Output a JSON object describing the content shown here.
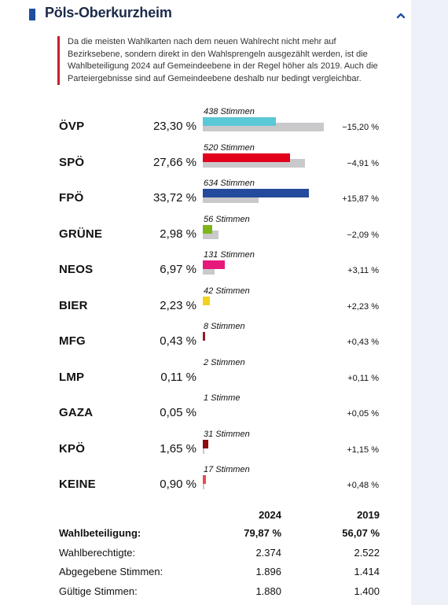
{
  "header": {
    "title": "Pöls-Oberkurzheim",
    "collapse_icon": "chevron-up-icon"
  },
  "note": "Da die meisten Wahlkarten nach dem neuen Wahlrecht nicht mehr auf Bezirksebene, sondern direkt in den Wahlsprengeln ausgezählt werden, ist die Wahlbeteiligung 2024 auf Gemeindeebene in der Regel höher als 2019. Auch die Parteiergebnisse sind auf Gemeindeebene deshalb nur bedingt vergleichbar.",
  "parties": [
    {
      "name": "ÖVP",
      "pct": "23,30 %",
      "votes": "438 Stimmen",
      "diff": "−15,20 %",
      "share_now": 23.3,
      "share_prev": 38.5,
      "color": "#5bc8d6"
    },
    {
      "name": "SPÖ",
      "pct": "27,66 %",
      "votes": "520 Stimmen",
      "diff": "−4,91 %",
      "share_now": 27.66,
      "share_prev": 32.57,
      "color": "#e3001b"
    },
    {
      "name": "FPÖ",
      "pct": "33,72 %",
      "votes": "634 Stimmen",
      "diff": "+15,87 %",
      "share_now": 33.72,
      "share_prev": 17.85,
      "color": "#234a9c"
    },
    {
      "name": "GRÜNE",
      "pct": "2,98 %",
      "votes": "56 Stimmen",
      "diff": "−2,09 %",
      "share_now": 2.98,
      "share_prev": 5.07,
      "color": "#7fb51c"
    },
    {
      "name": "NEOS",
      "pct": "6,97 %",
      "votes": "131 Stimmen",
      "diff": "+3,11 %",
      "share_now": 6.97,
      "share_prev": 3.86,
      "color": "#e6197b"
    },
    {
      "name": "BIER",
      "pct": "2,23 %",
      "votes": "42 Stimmen",
      "diff": "+2,23 %",
      "share_now": 2.23,
      "share_prev": 0,
      "color": "#f2d21e"
    },
    {
      "name": "MFG",
      "pct": "0,43 %",
      "votes": "8 Stimmen",
      "diff": "+0,43 %",
      "share_now": 0.43,
      "share_prev": 0,
      "color": "#8a1f2b"
    },
    {
      "name": "LMP",
      "pct": "0,11 %",
      "votes": "2 Stimmen",
      "diff": "+0,11 %",
      "share_now": 0.11,
      "share_prev": 0,
      "color": "#888888"
    },
    {
      "name": "GAZA",
      "pct": "0,05 %",
      "votes": "1 Stimme",
      "diff": "+0,05 %",
      "share_now": 0.05,
      "share_prev": 0,
      "color": "#888888"
    },
    {
      "name": "KPÖ",
      "pct": "1,65 %",
      "votes": "31 Stimmen",
      "diff": "+1,15 %",
      "share_now": 1.65,
      "share_prev": 0.5,
      "color": "#8b0d0d"
    },
    {
      "name": "KEINE",
      "pct": "0,90 %",
      "votes": "17 Stimmen",
      "diff": "+0,48 %",
      "share_now": 0.9,
      "share_prev": 0.42,
      "color": "#e84a4a"
    }
  ],
  "stats": {
    "col_2024": "2024",
    "col_2019": "2019",
    "rows": [
      {
        "label": "Wahlbeteiligung:",
        "v2024": "79,87 %",
        "v2019": "56,07 %",
        "bold": true
      },
      {
        "label": "Wahlberechtigte:",
        "v2024": "2.374",
        "v2019": "2.522",
        "bold": false
      },
      {
        "label": "Abgegebene Stimmen:",
        "v2024": "1.896",
        "v2019": "1.414",
        "bold": false
      },
      {
        "label": "Gültige Stimmen:",
        "v2024": "1.880",
        "v2019": "1.400",
        "bold": false
      }
    ]
  }
}
